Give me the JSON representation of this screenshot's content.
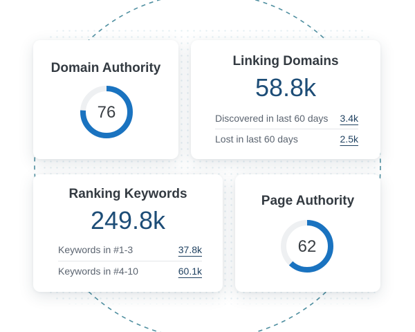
{
  "cards": {
    "domain_authority": {
      "title": "Domain Authority",
      "score": "76",
      "score_fraction": 0.76
    },
    "linking_domains": {
      "title": "Linking Domains",
      "value": "58.8k",
      "stats": [
        {
          "label": "Discovered in last 60 days",
          "value": "3.4k"
        },
        {
          "label": "Lost in last 60 days",
          "value": "2.5k"
        }
      ]
    },
    "ranking_keywords": {
      "title": "Ranking Keywords",
      "value": "249.8k",
      "stats": [
        {
          "label": "Keywords in #1-3",
          "value": "37.8k"
        },
        {
          "label": "Keywords in #4-10",
          "value": "60.1k"
        }
      ]
    },
    "page_authority": {
      "title": "Page Authority",
      "score": "62",
      "score_fraction": 0.62
    }
  },
  "colors": {
    "gauge_fill": "#1a73c0",
    "gauge_track": "#eef0f2",
    "value_text": "#1d4d77",
    "circle_dash": "#4f8fa0"
  }
}
